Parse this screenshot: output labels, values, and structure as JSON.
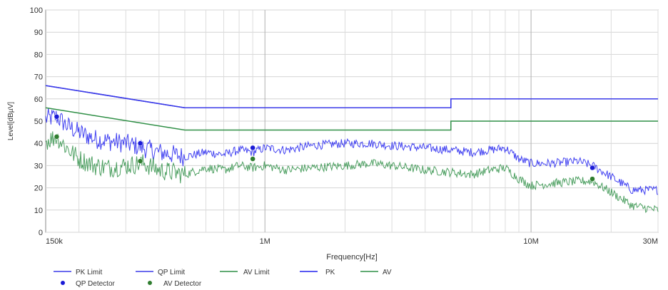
{
  "chart_data": {
    "type": "line",
    "title": "",
    "xlabel": "Frequency[Hz]",
    "ylabel": "Level[dBµV]",
    "x_scale": "log",
    "xlim": [
      150000,
      30000000
    ],
    "ylim": [
      0,
      100
    ],
    "grid": true,
    "y_ticks": [
      0,
      10,
      20,
      30,
      40,
      50,
      60,
      70,
      80,
      90,
      100
    ],
    "x_tick_labels": [
      {
        "value": 150000,
        "label": "150k"
      },
      {
        "value": 1000000,
        "label": "1M"
      },
      {
        "value": 10000000,
        "label": "10M"
      },
      {
        "value": 30000000,
        "label": "30M"
      }
    ],
    "legend_position": "bottom",
    "series": [
      {
        "name": "PK Limit",
        "style": "line",
        "color": "#3a3ae8",
        "x": [
          150000,
          500000,
          500000,
          5000000,
          5000000,
          30000000
        ],
        "y": [
          66,
          56,
          56,
          56,
          60,
          60
        ]
      },
      {
        "name": "QP Limit",
        "style": "line",
        "color": "#3a3ae8",
        "x": [
          150000,
          500000,
          500000,
          5000000,
          5000000,
          30000000
        ],
        "y": [
          66,
          56,
          56,
          56,
          60,
          60
        ]
      },
      {
        "name": "AV Limit",
        "style": "line",
        "color": "#2f8f46",
        "x": [
          150000,
          500000,
          500000,
          5000000,
          5000000,
          30000000
        ],
        "y": [
          56,
          46,
          46,
          46,
          50,
          50
        ]
      },
      {
        "name": "PK",
        "style": "noisy",
        "color": "#2222ee",
        "x": [
          150000,
          165000,
          180000,
          200000,
          230000,
          260000,
          300000,
          350000,
          400000,
          450000,
          500000,
          600000,
          700000,
          800000,
          900000,
          1000000,
          1200000,
          1500000,
          2000000,
          2500000,
          3000000,
          4000000,
          5000000,
          6000000,
          7000000,
          8000000,
          9000000,
          10000000,
          12000000,
          15000000,
          17000000,
          20000000,
          24000000,
          30000000
        ],
        "y": [
          51,
          52,
          48,
          45,
          42,
          41,
          40,
          38,
          36,
          35,
          34,
          36,
          35,
          37,
          36,
          38,
          37,
          39,
          40,
          40,
          39,
          38,
          37,
          36,
          37,
          38,
          33,
          31,
          31,
          32,
          30,
          25,
          19,
          19
        ]
      },
      {
        "name": "AV",
        "style": "noisy",
        "color": "#2f8f46",
        "x": [
          150000,
          165000,
          180000,
          200000,
          230000,
          260000,
          300000,
          350000,
          400000,
          450000,
          500000,
          600000,
          700000,
          800000,
          900000,
          1000000,
          1200000,
          1500000,
          2000000,
          2500000,
          3000000,
          4000000,
          5000000,
          6000000,
          7000000,
          8000000,
          9000000,
          10000000,
          12000000,
          15000000,
          17000000,
          20000000,
          24000000,
          30000000
        ],
        "y": [
          41,
          43,
          38,
          33,
          30,
          29,
          30,
          31,
          28,
          27,
          26,
          29,
          28,
          30,
          29,
          30,
          28,
          29,
          30,
          31,
          30,
          28,
          27,
          26,
          28,
          29,
          24,
          21,
          22,
          23,
          23,
          18,
          12,
          10
        ]
      },
      {
        "name": "QP Detector",
        "style": "marker",
        "color": "#1a1ad6",
        "x": [
          165000,
          340000,
          900000,
          17000000
        ],
        "y": [
          52,
          40,
          38,
          29
        ]
      },
      {
        "name": "AV Detector",
        "style": "marker",
        "color": "#2f7d2f",
        "x": [
          165000,
          340000,
          900000,
          17000000
        ],
        "y": [
          43,
          32,
          33,
          24
        ]
      }
    ],
    "legend": {
      "row1": [
        "PK Limit",
        "QP Limit",
        "AV Limit",
        "PK",
        "AV"
      ],
      "row2": [
        "QP Detector",
        "AV Detector"
      ]
    }
  }
}
